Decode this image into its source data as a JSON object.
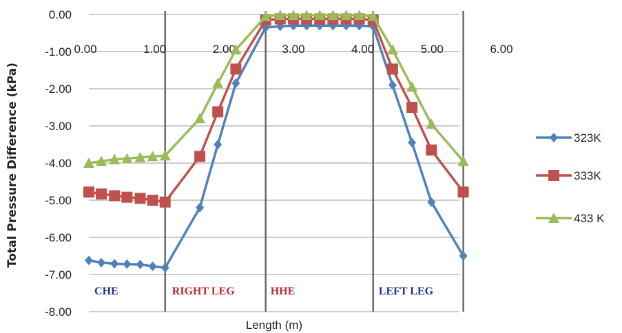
{
  "chart_data": {
    "type": "line",
    "title": "",
    "xlabel": "Length (m)",
    "ylabel": "Total Pressure Difference (kPa)",
    "xlim": [
      0,
      6
    ],
    "ylim": [
      -8,
      0
    ],
    "x_ticks": [
      "0.00",
      "1.00",
      "2.00",
      "3.00",
      "4.00",
      "5.00",
      "6.00"
    ],
    "y_ticks": [
      "0.00",
      "-1.00",
      "-2.00",
      "-3.00",
      "-4.00",
      "-5.00",
      "-6.00",
      "-7.00",
      "-8.00"
    ],
    "grid": "horizontal",
    "legend_position": "right",
    "regions": [
      {
        "label": "CHE",
        "color": "#1f2f99"
      },
      {
        "label": "RIGHT LEG",
        "color": "#c0282d"
      },
      {
        "label": "HHE",
        "color": "#c0282d"
      },
      {
        "label": "LEFT LEG",
        "color": "#1f2f99"
      }
    ],
    "series": [
      {
        "name": "323K",
        "color": "#4f81bd",
        "marker": "diamond",
        "x": [
          0.0,
          0.18,
          0.37,
          0.55,
          0.74,
          0.92,
          1.1,
          1.6,
          1.86,
          2.12,
          2.55,
          2.76,
          2.95,
          3.14,
          3.33,
          3.52,
          3.71,
          3.9,
          4.1,
          4.38,
          4.66,
          4.94,
          5.4
        ],
        "y": [
          -6.62,
          -6.68,
          -6.71,
          -6.72,
          -6.73,
          -6.78,
          -6.82,
          -5.2,
          -3.5,
          -1.85,
          -0.35,
          -0.32,
          -0.3,
          -0.3,
          -0.3,
          -0.3,
          -0.3,
          -0.3,
          -0.32,
          -1.9,
          -3.45,
          -5.05,
          -6.5
        ]
      },
      {
        "name": "333K",
        "color": "#c0504d",
        "marker": "square",
        "x": [
          0.0,
          0.18,
          0.37,
          0.55,
          0.74,
          0.92,
          1.1,
          1.6,
          1.86,
          2.12,
          2.55,
          2.76,
          2.95,
          3.14,
          3.33,
          3.52,
          3.71,
          3.9,
          4.1,
          4.38,
          4.66,
          4.94,
          5.4
        ],
        "y": [
          -4.78,
          -4.83,
          -4.88,
          -4.92,
          -4.95,
          -5.0,
          -5.05,
          -3.82,
          -2.62,
          -1.47,
          -0.15,
          -0.12,
          -0.12,
          -0.12,
          -0.12,
          -0.12,
          -0.12,
          -0.12,
          -0.15,
          -1.47,
          -2.5,
          -3.65,
          -4.78
        ]
      },
      {
        "name": "433 K",
        "color": "#9bbb59",
        "marker": "triangle",
        "x": [
          0.0,
          0.18,
          0.37,
          0.55,
          0.74,
          0.92,
          1.1,
          1.6,
          1.86,
          2.12,
          2.55,
          2.76,
          2.95,
          3.14,
          3.33,
          3.52,
          3.71,
          3.9,
          4.1,
          4.38,
          4.66,
          4.94,
          5.4
        ],
        "y": [
          -4.0,
          -3.95,
          -3.9,
          -3.88,
          -3.85,
          -3.82,
          -3.8,
          -2.8,
          -1.85,
          -0.95,
          -0.05,
          -0.02,
          -0.02,
          -0.02,
          -0.02,
          -0.02,
          -0.02,
          -0.02,
          -0.05,
          -0.95,
          -1.95,
          -2.95,
          -3.95
        ]
      }
    ]
  }
}
